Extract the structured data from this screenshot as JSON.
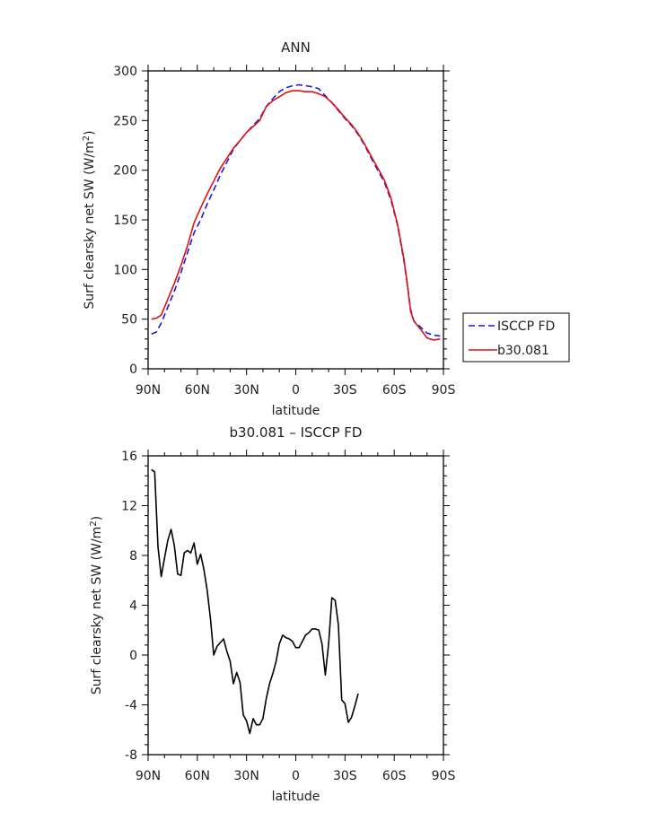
{
  "chart_data": [
    {
      "type": "line",
      "title": "ANN",
      "xlabel": "latitude",
      "ylabel_pre": "Surf clearsky net SW (W/m",
      "ylabel_sup": "2",
      "ylabel_post": ")",
      "xlim": [
        -90,
        90
      ],
      "ylim": [
        0,
        300
      ],
      "xticks": [
        {
          "value": -90,
          "label": "90N"
        },
        {
          "value": -60,
          "label": "60N"
        },
        {
          "value": -30,
          "label": "30N"
        },
        {
          "value": 0,
          "label": "0"
        },
        {
          "value": 30,
          "label": "30S"
        },
        {
          "value": 60,
          "label": "60S"
        },
        {
          "value": 90,
          "label": "90S"
        }
      ],
      "yticks": [
        0,
        50,
        100,
        150,
        200,
        250,
        300
      ],
      "legend_position": "right",
      "series": [
        {
          "name": "ISCCP FD",
          "color": "#1a1adc",
          "dash": "dashed",
          "points": [
            [
              -88,
              35
            ],
            [
              -85,
              37
            ],
            [
              -82,
              46
            ],
            [
              -78,
              62
            ],
            [
              -74,
              78
            ],
            [
              -70,
              97
            ],
            [
              -66,
              117
            ],
            [
              -62,
              137
            ],
            [
              -58,
              150
            ],
            [
              -54,
              166
            ],
            [
              -50,
              180
            ],
            [
              -46,
              195
            ],
            [
              -42,
              208
            ],
            [
              -38,
              221
            ],
            [
              -34,
              230
            ],
            [
              -30,
              238
            ],
            [
              -26,
              245
            ],
            [
              -22,
              252
            ],
            [
              -18,
              264
            ],
            [
              -14,
              272
            ],
            [
              -10,
              279
            ],
            [
              -6,
              283
            ],
            [
              -2,
              285
            ],
            [
              2,
              286
            ],
            [
              6,
              285
            ],
            [
              10,
              284
            ],
            [
              14,
              282
            ],
            [
              18,
              275
            ],
            [
              22,
              268
            ],
            [
              26,
              260
            ],
            [
              30,
              252
            ],
            [
              34,
              245
            ],
            [
              38,
              236
            ],
            [
              42,
              225
            ],
            [
              46,
              212
            ],
            [
              50,
              200
            ],
            [
              54,
              188
            ],
            [
              58,
              170
            ],
            [
              62,
              145
            ],
            [
              66,
              108
            ],
            [
              68,
              85
            ],
            [
              70,
              60
            ],
            [
              72,
              48
            ],
            [
              76,
              42
            ],
            [
              80,
              36
            ],
            [
              84,
              34
            ],
            [
              88,
              33
            ]
          ]
        },
        {
          "name": "b30.081",
          "color": "#e01010",
          "dash": "solid",
          "points": [
            [
              -88,
              50
            ],
            [
              -85,
              51
            ],
            [
              -82,
              54
            ],
            [
              -78,
              70
            ],
            [
              -74,
              86
            ],
            [
              -70,
              104
            ],
            [
              -66,
              124
            ],
            [
              -62,
              147
            ],
            [
              -58,
              162
            ],
            [
              -54,
              176
            ],
            [
              -50,
              189
            ],
            [
              -46,
              202
            ],
            [
              -42,
              212
            ],
            [
              -38,
              222
            ],
            [
              -34,
              230
            ],
            [
              -30,
              238
            ],
            [
              -26,
              244
            ],
            [
              -22,
              250
            ],
            [
              -18,
              264
            ],
            [
              -14,
              270
            ],
            [
              -10,
              274
            ],
            [
              -6,
              278
            ],
            [
              -2,
              280
            ],
            [
              2,
              280
            ],
            [
              6,
              279
            ],
            [
              10,
              279
            ],
            [
              14,
              277
            ],
            [
              18,
              274
            ],
            [
              22,
              268
            ],
            [
              26,
              261
            ],
            [
              30,
              253
            ],
            [
              34,
              246
            ],
            [
              38,
              237
            ],
            [
              42,
              226
            ],
            [
              46,
              214
            ],
            [
              50,
              202
            ],
            [
              54,
              190
            ],
            [
              58,
              172
            ],
            [
              62,
              146
            ],
            [
              66,
              110
            ],
            [
              68,
              85
            ],
            [
              70,
              58
            ],
            [
              72,
              48
            ],
            [
              76,
              40
            ],
            [
              80,
              31
            ],
            [
              84,
              29
            ],
            [
              88,
              30
            ]
          ]
        }
      ]
    },
    {
      "type": "line",
      "title": "b30.081 – ISCCP FD",
      "xlabel": "latitude",
      "ylabel_pre": "Surf clearsky net SW (W/m",
      "ylabel_sup": "2",
      "ylabel_post": ")",
      "xlim": [
        -90,
        90
      ],
      "ylim": [
        -8,
        16
      ],
      "xticks": [
        {
          "value": -90,
          "label": "90N"
        },
        {
          "value": -60,
          "label": "60N"
        },
        {
          "value": -30,
          "label": "30N"
        },
        {
          "value": 0,
          "label": "0"
        },
        {
          "value": 30,
          "label": "30S"
        },
        {
          "value": 60,
          "label": "60S"
        },
        {
          "value": 90,
          "label": "90S"
        }
      ],
      "yticks": [
        -8,
        -4,
        0,
        4,
        8,
        12,
        16
      ],
      "series": [
        {
          "color": "#000000",
          "dash": "solid",
          "points": [
            [
              -88,
              14.9
            ],
            [
              -86,
              14.7
            ],
            [
              -84,
              8.7
            ],
            [
              -82,
              6.3
            ],
            [
              -80,
              7.8
            ],
            [
              -78,
              9.2
            ],
            [
              -76,
              10.1
            ],
            [
              -74,
              8.8
            ],
            [
              -72,
              6.5
            ],
            [
              -70,
              6.4
            ],
            [
              -68,
              8.2
            ],
            [
              -66,
              8.4
            ],
            [
              -64,
              8.2
            ],
            [
              -62,
              9.0
            ],
            [
              -60,
              7.3
            ],
            [
              -58,
              8.1
            ],
            [
              -56,
              6.9
            ],
            [
              -54,
              5.2
            ],
            [
              -52,
              2.9
            ],
            [
              -50,
              0.0
            ],
            [
              -48,
              0.7
            ],
            [
              -46,
              1.0
            ],
            [
              -44,
              1.3
            ],
            [
              -42,
              0.3
            ],
            [
              -40,
              -0.5
            ],
            [
              -38,
              -2.3
            ],
            [
              -36,
              -1.4
            ],
            [
              -34,
              -2.2
            ],
            [
              -32,
              -4.8
            ],
            [
              -30,
              -5.3
            ],
            [
              -28,
              -6.3
            ],
            [
              -26,
              -5.1
            ],
            [
              -24,
              -5.6
            ],
            [
              -22,
              -5.6
            ],
            [
              -20,
              -5.1
            ],
            [
              -18,
              -3.5
            ],
            [
              -16,
              -2.3
            ],
            [
              -14,
              -1.5
            ],
            [
              -12,
              -0.5
            ],
            [
              -10,
              0.9
            ],
            [
              -8,
              1.6
            ],
            [
              -6,
              1.4
            ],
            [
              -4,
              1.3
            ],
            [
              -2,
              1.1
            ],
            [
              0,
              0.6
            ],
            [
              2,
              0.6
            ],
            [
              4,
              1.1
            ],
            [
              6,
              1.6
            ],
            [
              8,
              1.8
            ],
            [
              10,
              2.1
            ],
            [
              12,
              2.1
            ],
            [
              14,
              2.0
            ],
            [
              16,
              0.9
            ],
            [
              18,
              -1.6
            ],
            [
              20,
              0.9
            ],
            [
              22,
              4.6
            ],
            [
              24,
              4.4
            ],
            [
              26,
              2.4
            ],
            [
              28,
              -3.6
            ],
            [
              30,
              -3.9
            ],
            [
              32,
              -5.4
            ],
            [
              34,
              -5.0
            ],
            [
              36,
              -4.1
            ],
            [
              38,
              -3.1
            ]
          ]
        }
      ]
    }
  ]
}
